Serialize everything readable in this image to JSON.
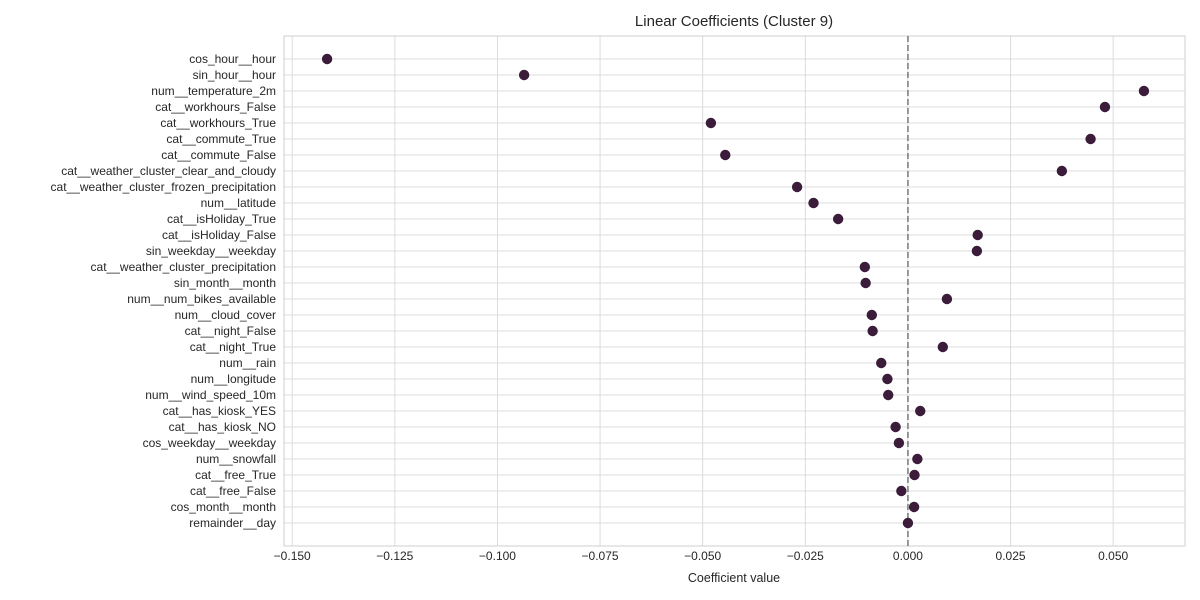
{
  "chart_data": {
    "type": "scatter",
    "title": "Linear Coefficients (Cluster 9)",
    "xlabel": "Coefficient value",
    "ylabel": "",
    "xlim": [
      -0.152,
      0.0675
    ],
    "xticks": [
      -0.15,
      -0.125,
      -0.1,
      -0.075,
      -0.05,
      -0.025,
      0.0,
      0.025,
      0.05
    ],
    "xtick_labels": [
      "−0.150",
      "−0.125",
      "−0.100",
      "−0.075",
      "−0.050",
      "−0.025",
      "0.000",
      "0.025",
      "0.050"
    ],
    "reference_line": 0.0,
    "grid": true,
    "marker_color": "#3b1c3a",
    "categories": [
      "cos_hour__hour",
      "sin_hour__hour",
      "num__temperature_2m",
      "cat__workhours_False",
      "cat__workhours_True",
      "cat__commute_True",
      "cat__commute_False",
      "cat__weather_cluster_clear_and_cloudy",
      "cat__weather_cluster_frozen_precipitation",
      "num__latitude",
      "cat__isHoliday_True",
      "cat__isHoliday_False",
      "sin_weekday__weekday",
      "cat__weather_cluster_precipitation",
      "sin_month__month",
      "num__num_bikes_available",
      "num__cloud_cover",
      "cat__night_False",
      "cat__night_True",
      "num__rain",
      "num__longitude",
      "num__wind_speed_10m",
      "cat__has_kiosk_YES",
      "cat__has_kiosk_NO",
      "cos_weekday__weekday",
      "num__snowfall",
      "cat__free_True",
      "cat__free_False",
      "cos_month__month",
      "remainder__day"
    ],
    "values": [
      -0.1415,
      -0.0935,
      0.0575,
      0.048,
      -0.048,
      0.0445,
      -0.0445,
      0.0375,
      -0.027,
      -0.023,
      -0.017,
      0.017,
      0.0168,
      -0.0105,
      -0.0103,
      0.0095,
      -0.0088,
      -0.0086,
      0.0085,
      -0.0065,
      -0.005,
      -0.0048,
      0.003,
      -0.003,
      -0.0022,
      0.0023,
      0.0016,
      -0.0016,
      0.0015,
      0.0
    ]
  }
}
